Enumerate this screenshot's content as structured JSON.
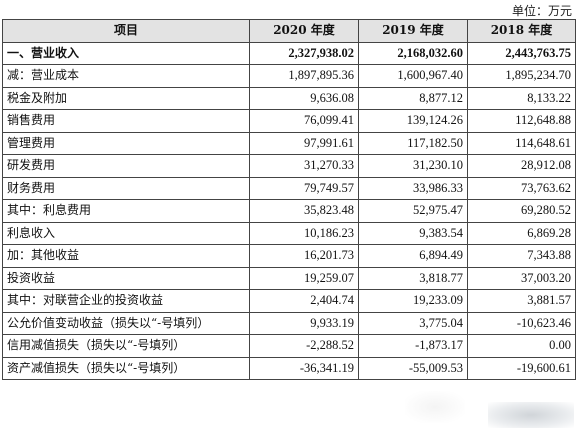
{
  "unit_label": "单位：万元",
  "columns": [
    "项目",
    "2020 年度",
    "2019 年度",
    "2018 年度"
  ],
  "rows": [
    {
      "label": "一、营业收入",
      "v2020": "2,327,938.02",
      "v2019": "2,168,032.60",
      "v2018": "2,443,763.75",
      "bold": true
    },
    {
      "label": "减：营业成本",
      "v2020": "1,897,895.36",
      "v2019": "1,600,967.40",
      "v2018": "1,895,234.70"
    },
    {
      "label": "税金及附加",
      "v2020": "9,636.08",
      "v2019": "8,877.12",
      "v2018": "8,133.22"
    },
    {
      "label": "销售费用",
      "v2020": "76,099.41",
      "v2019": "139,124.26",
      "v2018": "112,648.88"
    },
    {
      "label": "管理费用",
      "v2020": "97,991.61",
      "v2019": "117,182.50",
      "v2018": "114,648.61"
    },
    {
      "label": "研发费用",
      "v2020": "31,270.33",
      "v2019": "31,230.10",
      "v2018": "28,912.08"
    },
    {
      "label": "财务费用",
      "v2020": "79,749.57",
      "v2019": "33,986.33",
      "v2018": "73,763.62"
    },
    {
      "label": "其中：利息费用",
      "v2020": "35,823.48",
      "v2019": "52,975.47",
      "v2018": "69,280.52"
    },
    {
      "label": "利息收入",
      "v2020": "10,186.23",
      "v2019": "9,383.54",
      "v2018": "6,869.28"
    },
    {
      "label": "加：其他收益",
      "v2020": "16,201.73",
      "v2019": "6,894.49",
      "v2018": "7,343.88"
    },
    {
      "label": "投资收益",
      "v2020": "19,259.07",
      "v2019": "3,818.77",
      "v2018": "37,003.20"
    },
    {
      "label": "其中：对联营企业的投资收益",
      "v2020": "2,404.74",
      "v2019": "19,233.09",
      "v2018": "3,881.57"
    },
    {
      "label": "公允价值变动收益（损失以“-号填列）",
      "v2020": "9,933.19",
      "v2019": "3,775.04",
      "v2018": "-10,623.46"
    },
    {
      "label": "信用减值损失（损失以“-号填列）",
      "v2020": "-2,288.52",
      "v2019": "-1,873.17",
      "v2018": "0.00"
    },
    {
      "label": "资产减值损失（损失以“-号填列）",
      "v2020": "-36,341.19",
      "v2019": "-55,009.53",
      "v2018": "-19,600.61"
    }
  ]
}
